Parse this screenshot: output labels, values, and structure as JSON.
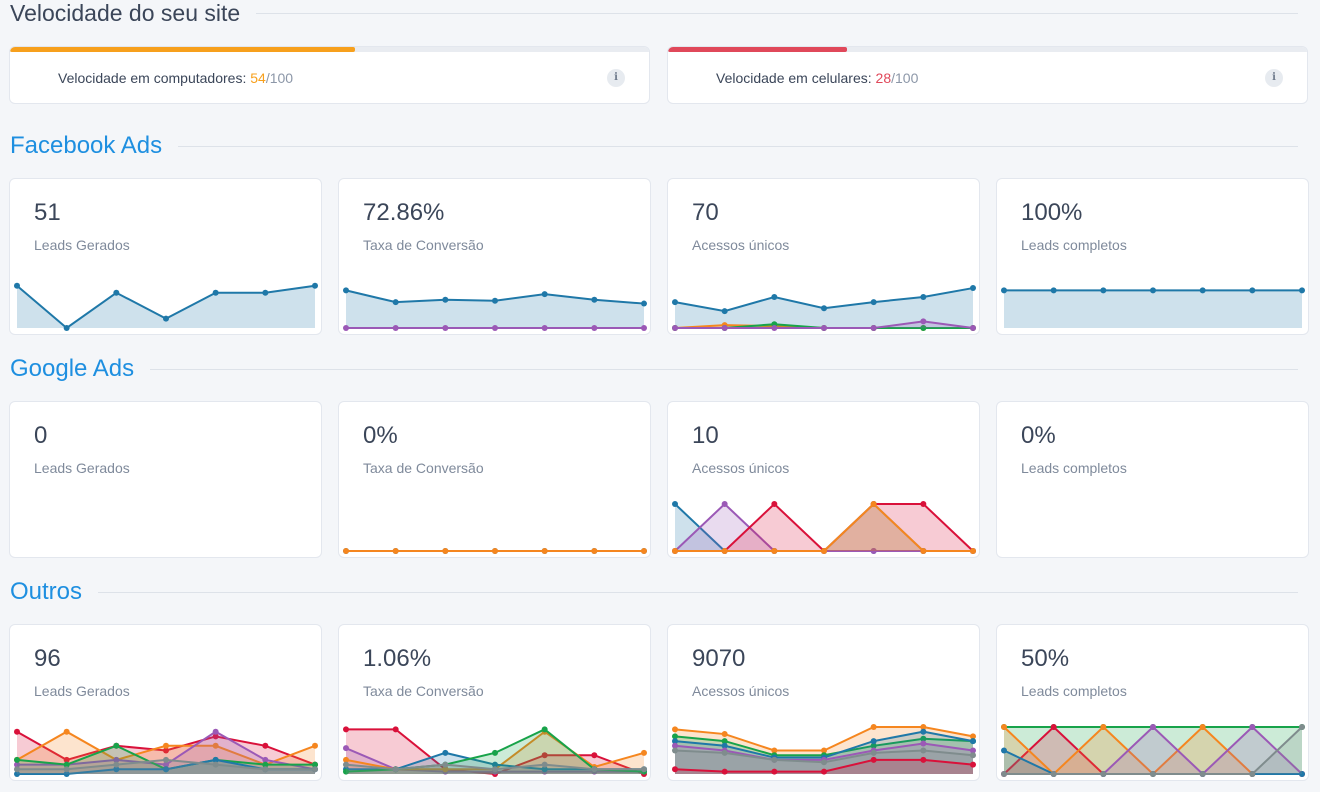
{
  "speed_section": {
    "title": "Velocidade do seu site",
    "desktop": {
      "label": "Velocidade em computadores: ",
      "score": "54",
      "max": "/100",
      "progress": 0.54,
      "color": "#f7a01d"
    },
    "mobile": {
      "label": "Velocidade em celulares: ",
      "score": "28",
      "max": "/100",
      "progress": 0.28,
      "color": "#e0485a"
    },
    "info_icon": "info-icon"
  },
  "colors": {
    "blue": "#1f78a8",
    "purple": "#9b59b6",
    "orange": "#f5861f",
    "green": "#18a34a",
    "red": "#d9113a",
    "gray": "#7f8c8d",
    "accent": "#1e8fe0"
  },
  "sections": [
    {
      "title": "Facebook Ads",
      "cards": [
        {
          "value": "51",
          "label": "Leads Gerados",
          "series": [
            {
              "color": "blue",
              "values": [
                0.9,
                0.0,
                0.75,
                0.2,
                0.75,
                0.75,
                0.9
              ]
            }
          ]
        },
        {
          "value": "72.86%",
          "label": "Taxa de Conversão",
          "series": [
            {
              "color": "blue",
              "values": [
                0.8,
                0.55,
                0.6,
                0.58,
                0.72,
                0.6,
                0.52
              ]
            },
            {
              "color": "purple",
              "values": [
                0,
                0,
                0,
                0,
                0,
                0,
                0
              ]
            }
          ]
        },
        {
          "value": "70",
          "label": "Acessos únicos",
          "series": [
            {
              "color": "blue",
              "values": [
                0.55,
                0.36,
                0.66,
                0.42,
                0.55,
                0.66,
                0.85
              ]
            },
            {
              "color": "orange",
              "values": [
                0,
                0.06,
                0.04,
                0,
                0,
                0,
                0
              ]
            },
            {
              "color": "green",
              "values": [
                0,
                0,
                0.08,
                0,
                0,
                0,
                0
              ]
            },
            {
              "color": "purple",
              "values": [
                0,
                0,
                0,
                0,
                0,
                0.14,
                0
              ]
            }
          ]
        },
        {
          "value": "100%",
          "label": "Leads completos",
          "series": [
            {
              "color": "blue",
              "values": [
                0.8,
                0.8,
                0.8,
                0.8,
                0.8,
                0.8,
                0.8
              ]
            }
          ]
        }
      ]
    },
    {
      "title": "Google Ads",
      "cards": [
        {
          "value": "0",
          "label": "Leads Gerados",
          "series": []
        },
        {
          "value": "0%",
          "label": "Taxa de Conversão",
          "series": [
            {
              "color": "blue",
              "values": [
                0,
                0,
                0,
                0,
                0,
                0,
                0
              ]
            },
            {
              "color": "orange",
              "values": [
                0,
                0,
                0,
                0,
                0,
                0,
                0
              ]
            }
          ]
        },
        {
          "value": "10",
          "label": "Acessos únicos",
          "series": [
            {
              "color": "blue",
              "values": [
                1,
                0,
                0,
                0,
                0,
                0,
                0
              ]
            },
            {
              "color": "purple",
              "values": [
                0,
                1,
                0,
                0,
                0,
                0,
                0
              ]
            },
            {
              "color": "red",
              "values": [
                0,
                0,
                1,
                0,
                1,
                1,
                0
              ]
            },
            {
              "color": "gray",
              "values": [
                0,
                0,
                0,
                0,
                1,
                0,
                0
              ]
            },
            {
              "color": "orange",
              "values": [
                0,
                0,
                0,
                0,
                1,
                0,
                0
              ]
            }
          ]
        },
        {
          "value": "0%",
          "label": "Leads completos",
          "series": []
        }
      ]
    },
    {
      "title": "Outros",
      "cards": [
        {
          "value": "96",
          "label": "Leads Gerados",
          "series": [
            {
              "color": "red",
              "values": [
                0.9,
                0.3,
                0.6,
                0.5,
                0.8,
                0.6,
                0.2
              ]
            },
            {
              "color": "orange",
              "values": [
                0.3,
                0.9,
                0.3,
                0.6,
                0.6,
                0.2,
                0.6
              ]
            },
            {
              "color": "purple",
              "values": [
                0.2,
                0.2,
                0.3,
                0.2,
                0.9,
                0.3,
                0.1
              ]
            },
            {
              "color": "green",
              "values": [
                0.3,
                0.2,
                0.6,
                0.1,
                0.3,
                0.2,
                0.2
              ]
            },
            {
              "color": "blue",
              "values": [
                0,
                0,
                0.1,
                0.1,
                0.3,
                0.1,
                0.1
              ]
            },
            {
              "color": "gray",
              "values": [
                0.1,
                0.1,
                0.2,
                0.3,
                0.2,
                0.1,
                0.1
              ]
            }
          ]
        },
        {
          "value": "1.06%",
          "label": "Taxa de Conversão",
          "series": [
            {
              "color": "red",
              "values": [
                0.95,
                0.95,
                0.1,
                0,
                0.4,
                0.4,
                0
              ]
            },
            {
              "color": "purple",
              "values": [
                0.55,
                0.1,
                0.05,
                0.05,
                0.05,
                0.05,
                0.05
              ]
            },
            {
              "color": "orange",
              "values": [
                0.3,
                0.1,
                0.1,
                0.1,
                0.9,
                0.15,
                0.45
              ]
            },
            {
              "color": "blue",
              "values": [
                0.1,
                0.1,
                0.45,
                0.2,
                0.1,
                0.1,
                0.1
              ]
            },
            {
              "color": "green",
              "values": [
                0.05,
                0.1,
                0.2,
                0.45,
                0.95,
                0.1,
                0.05
              ]
            },
            {
              "color": "gray",
              "values": [
                0.2,
                0.1,
                0.2,
                0.1,
                0.2,
                0.1,
                0.1
              ]
            }
          ]
        },
        {
          "value": "9070",
          "label": "Acessos únicos",
          "series": [
            {
              "color": "orange",
              "values": [
                0.95,
                0.85,
                0.5,
                0.5,
                1.0,
                1.0,
                0.8
              ]
            },
            {
              "color": "green",
              "values": [
                0.8,
                0.7,
                0.4,
                0.4,
                0.6,
                0.75,
                0.7
              ]
            },
            {
              "color": "blue",
              "values": [
                0.7,
                0.6,
                0.35,
                0.35,
                0.7,
                0.9,
                0.7
              ]
            },
            {
              "color": "purple",
              "values": [
                0.6,
                0.5,
                0.3,
                0.3,
                0.5,
                0.65,
                0.5
              ]
            },
            {
              "color": "gray",
              "values": [
                0.5,
                0.45,
                0.3,
                0.25,
                0.45,
                0.5,
                0.4
              ]
            },
            {
              "color": "red",
              "values": [
                0.1,
                0.05,
                0.05,
                0.05,
                0.3,
                0.3,
                0.2
              ]
            }
          ]
        },
        {
          "value": "50%",
          "label": "Leads completos",
          "series": [
            {
              "color": "green",
              "values": [
                1,
                1,
                1,
                1,
                1,
                1,
                1
              ]
            },
            {
              "color": "red",
              "values": [
                0,
                1,
                0,
                0,
                0,
                0,
                0
              ]
            },
            {
              "color": "orange",
              "values": [
                1,
                0,
                1,
                0,
                1,
                0,
                0
              ]
            },
            {
              "color": "purple",
              "values": [
                0,
                0,
                0,
                1,
                0,
                1,
                0
              ]
            },
            {
              "color": "blue",
              "values": [
                0.5,
                0,
                0,
                0,
                0,
                0,
                0
              ]
            },
            {
              "color": "gray",
              "values": [
                0,
                0,
                0,
                0,
                0,
                0,
                1
              ]
            }
          ]
        }
      ]
    }
  ]
}
